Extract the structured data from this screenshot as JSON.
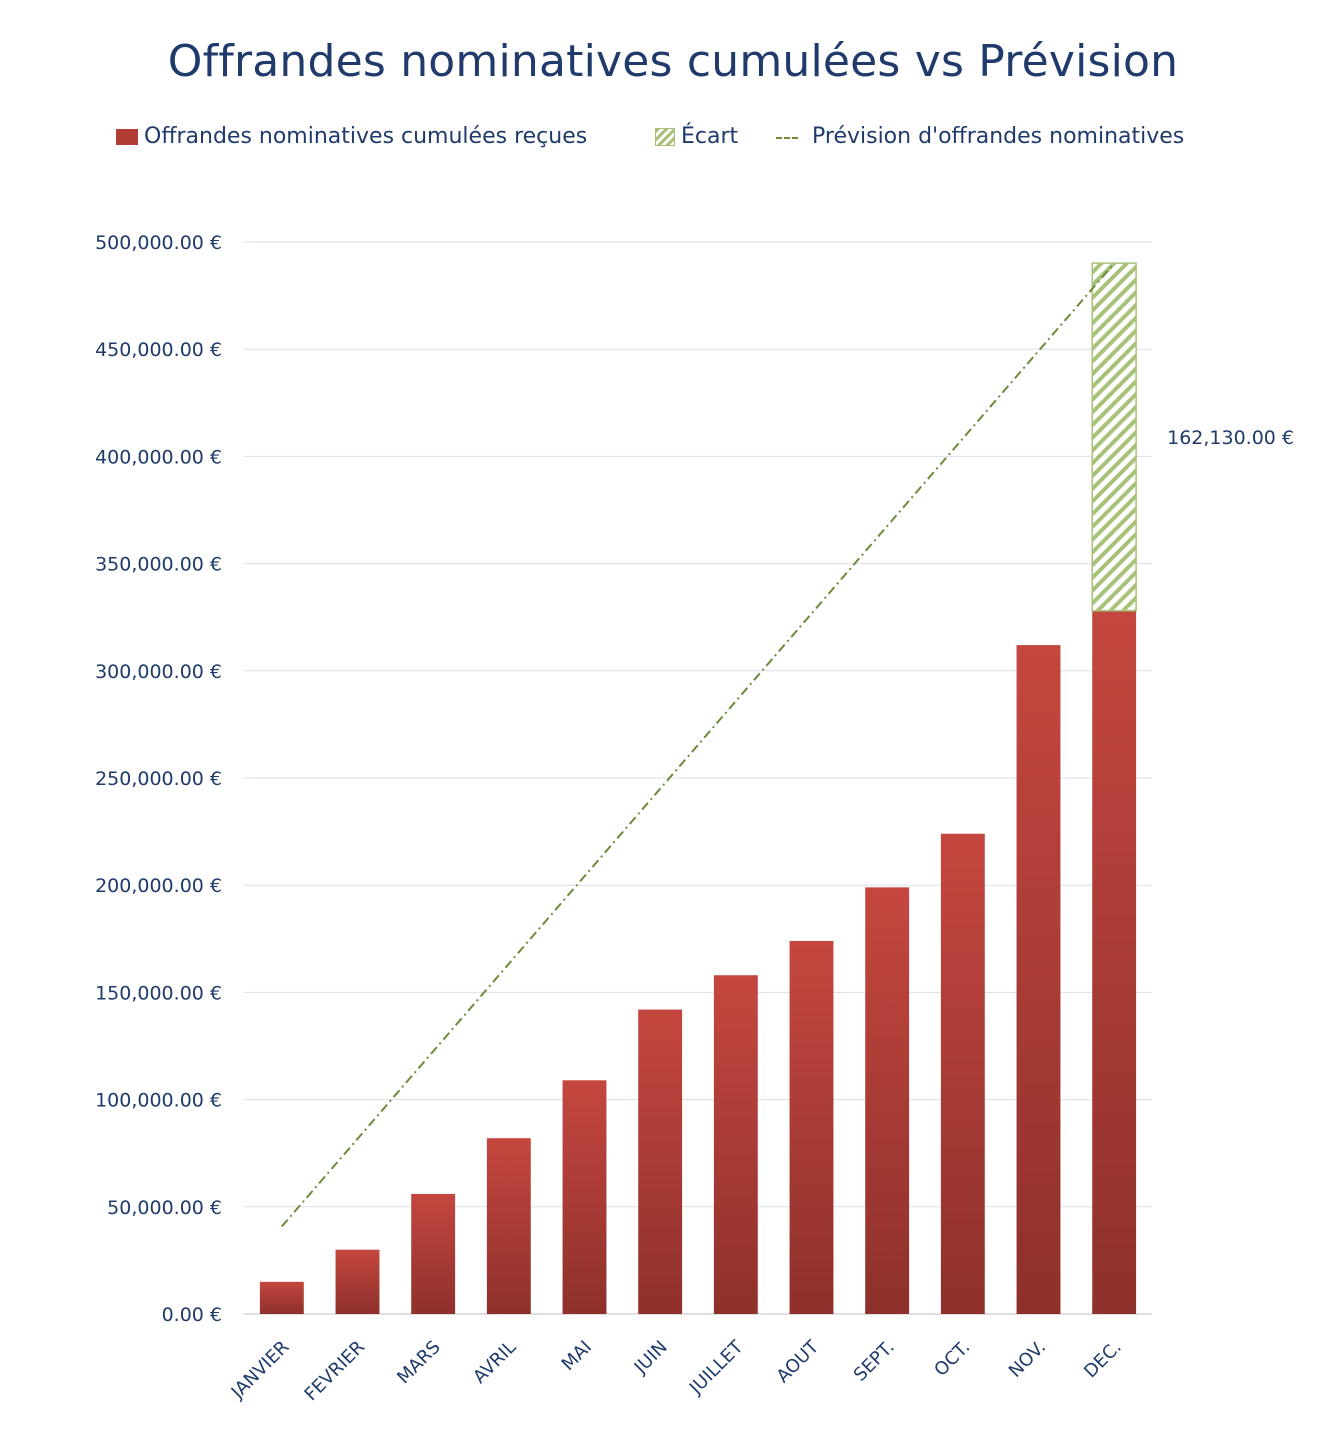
{
  "chart_data": {
    "type": "bar",
    "title": "Offrandes nominatives cumulées vs Prévision",
    "xlabel": "",
    "ylabel": "",
    "ylim": [
      0,
      500000
    ],
    "y_ticks": [
      "0.00 €",
      "50,000.00 €",
      "100,000.00 €",
      "150,000.00 €",
      "200,000.00 €",
      "250,000.00 €",
      "300,000.00 €",
      "350,000.00 €",
      "400,000.00 €",
      "450,000.00 €",
      "500,000.00 €"
    ],
    "categories": [
      "JANVIER",
      "FEVRIER",
      "MARS",
      "AVRIL",
      "MAI",
      "JUIN",
      "JUILLET",
      "AOUT",
      "SEPT.",
      "OCT.",
      "NOV.",
      "DEC."
    ],
    "series": [
      {
        "name": "Offrandes nominatives cumulées reçues",
        "kind": "bar",
        "color": "#b33c35",
        "values": [
          15000,
          30000,
          56000,
          82000,
          109000,
          142000,
          158000,
          174000,
          199000,
          224000,
          312000,
          328000
        ]
      },
      {
        "name": "Écart",
        "kind": "stacked-bar-hatched",
        "color": "#a9c27a",
        "values": [
          0,
          0,
          0,
          0,
          0,
          0,
          0,
          0,
          0,
          0,
          0,
          162130
        ]
      },
      {
        "name": "Prévision d'offrandes nominatives",
        "kind": "line-dashdot",
        "color": "#6e8a3a",
        "values": [
          40833,
          81667,
          122500,
          163333,
          204167,
          245000,
          285833,
          326667,
          367500,
          408333,
          449167,
          490000
        ]
      }
    ],
    "annotations": [
      {
        "category": "DEC.",
        "text": "162,130.00 €"
      }
    ],
    "legend_position": "top",
    "grid": true
  }
}
